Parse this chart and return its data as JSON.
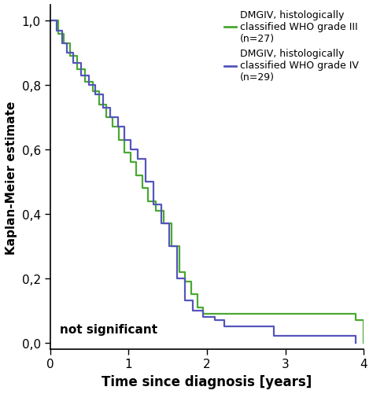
{
  "xlabel": "Time since diagnosis [years]",
  "ylabel": "Kaplan-Meier estimate",
  "xlim": [
    0,
    4.0
  ],
  "ylim": [
    -0.02,
    1.05
  ],
  "xticks": [
    0,
    1,
    2,
    3,
    4
  ],
  "yticks": [
    0.0,
    0.2,
    0.4,
    0.6,
    0.8,
    1.0
  ],
  "ytick_labels": [
    "0,0",
    "0,2",
    "0,4",
    "0,6",
    "0,8",
    "1,0"
  ],
  "annotation": "not significant",
  "color_green": "#4aa832",
  "color_blue": "#5555bb",
  "legend_line1": "DMGIV, histologically\nclassified WHO grade III\n(n=27)",
  "legend_line2": "DMGIV, histologically\nclassified WHO grade IV\n(n=29)",
  "green_times": [
    0.0,
    0.1,
    0.18,
    0.26,
    0.35,
    0.45,
    0.55,
    0.63,
    0.72,
    0.8,
    0.88,
    0.95,
    1.03,
    1.1,
    1.18,
    1.25,
    1.35,
    1.45,
    1.55,
    1.65,
    1.72,
    1.8,
    1.88,
    1.95,
    2.05,
    3.8,
    3.9,
    4.0
  ],
  "green_surv": [
    1.0,
    0.96,
    0.93,
    0.89,
    0.85,
    0.81,
    0.78,
    0.74,
    0.7,
    0.67,
    0.63,
    0.59,
    0.56,
    0.52,
    0.48,
    0.44,
    0.41,
    0.37,
    0.3,
    0.22,
    0.19,
    0.15,
    0.11,
    0.09,
    0.09,
    0.09,
    0.07,
    0.0
  ],
  "blue_times": [
    0.0,
    0.08,
    0.15,
    0.22,
    0.3,
    0.4,
    0.5,
    0.58,
    0.68,
    0.77,
    0.87,
    0.95,
    1.03,
    1.12,
    1.22,
    1.32,
    1.42,
    1.52,
    1.62,
    1.72,
    1.82,
    1.95,
    2.1,
    2.22,
    2.3,
    2.8,
    2.85,
    3.9
  ],
  "blue_surv": [
    1.0,
    0.97,
    0.93,
    0.9,
    0.87,
    0.83,
    0.8,
    0.77,
    0.73,
    0.7,
    0.67,
    0.63,
    0.6,
    0.57,
    0.5,
    0.43,
    0.37,
    0.3,
    0.2,
    0.13,
    0.1,
    0.08,
    0.07,
    0.05,
    0.05,
    0.05,
    0.02,
    0.0
  ]
}
